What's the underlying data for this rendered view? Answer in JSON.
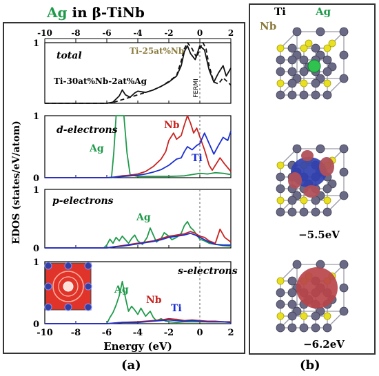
{
  "figure": {
    "title_element": "Ag",
    "title_rest": " in β-TiNb",
    "panel_a_label": "(a)",
    "panel_b_label": "(b)",
    "y_axis_label": "EDOS (states/eV/atom)",
    "x_axis_label": "Energy (eV)",
    "fermi_label": "FERMI",
    "colors": {
      "Ag": "#1f9a4a",
      "Nb": "#c8231f",
      "Ti": "#1a2fd0",
      "Ti25Nb": "#8a7a3a",
      "alloy": "#111111"
    }
  },
  "panels_b": {
    "legend": {
      "Ti": "Ti",
      "Ag": "Ag",
      "Nb": "Nb"
    },
    "energy_1": "−5.5eV",
    "energy_2": "−6.2eV"
  },
  "chart_data": [
    {
      "type": "line",
      "name": "total",
      "xlim": [
        -10,
        2
      ],
      "ylim": [
        0,
        1
      ],
      "x_ticks_top": [
        -10,
        -8,
        -6,
        -4,
        -2,
        0,
        2
      ],
      "y_ticks": [
        1
      ],
      "annotations": [
        "total",
        "Ti-25at%Nb",
        "Ti-30at%Nb-2at%Ag"
      ],
      "series": [
        {
          "name": "Ti-30at%Nb-2at%Ag",
          "style": "solid",
          "color": "#111111",
          "x": [
            -10,
            -6,
            -5.6,
            -5.2,
            -5.0,
            -4.8,
            -4.5,
            -4.2,
            -4.0,
            -3.5,
            -3.0,
            -2.5,
            -2.0,
            -1.5,
            -1.2,
            -1.0,
            -0.8,
            -0.6,
            -0.3,
            0.0,
            0.3,
            0.6,
            0.9,
            1.2,
            1.5,
            1.7,
            2.0
          ],
          "y": [
            0,
            0,
            0.02,
            0.12,
            0.22,
            0.14,
            0.1,
            0.17,
            0.2,
            0.18,
            0.22,
            0.28,
            0.35,
            0.45,
            0.62,
            0.85,
            0.95,
            0.82,
            0.72,
            0.95,
            0.88,
            0.55,
            0.35,
            0.5,
            0.62,
            0.45,
            0.58
          ]
        },
        {
          "name": "Ti-25at%Nb",
          "style": "dashed",
          "color": "#111111",
          "x": [
            -10,
            -6,
            -5.5,
            -5.0,
            -4.5,
            -4.0,
            -3.5,
            -3.0,
            -2.5,
            -2.0,
            -1.5,
            -1.2,
            -1.0,
            -0.8,
            -0.5,
            -0.2,
            0.0,
            0.2,
            0.4,
            0.6,
            0.9,
            1.2,
            1.5,
            1.8,
            2.0
          ],
          "y": [
            0,
            0,
            0.02,
            0.06,
            0.1,
            0.14,
            0.18,
            0.22,
            0.28,
            0.36,
            0.46,
            0.7,
            0.9,
            1.0,
            0.9,
            0.75,
            0.9,
            1.0,
            0.9,
            0.62,
            0.35,
            0.32,
            0.42,
            0.35,
            0.3
          ]
        }
      ]
    },
    {
      "type": "line",
      "name": "d-electrons",
      "xlim": [
        -10,
        2
      ],
      "ylim": [
        0,
        1
      ],
      "y_ticks": [
        0,
        1
      ],
      "annotations": [
        "d-electrons",
        "Ag",
        "Nb",
        "Ti"
      ],
      "series": [
        {
          "name": "Ag",
          "color": "#1f9a4a",
          "x": [
            -10,
            -5.7,
            -5.55,
            -5.4,
            -5.2,
            -4.9,
            -4.7,
            -4.5,
            -4.0,
            -3.0,
            -2.0,
            -1.0,
            -0.5,
            0.0,
            0.5,
            1.0,
            1.5,
            2.0
          ],
          "y": [
            0,
            0,
            0.4,
            1.0,
            1.0,
            1.0,
            0.4,
            0.05,
            0.02,
            0.02,
            0.02,
            0.03,
            0.05,
            0.07,
            0.06,
            0.08,
            0.07,
            0.05
          ]
        },
        {
          "name": "Nb",
          "color": "#c8231f",
          "x": [
            -10,
            -6,
            -5.5,
            -5.0,
            -4.5,
            -4.0,
            -3.5,
            -3.0,
            -2.5,
            -2.2,
            -2.0,
            -1.7,
            -1.5,
            -1.2,
            -1.0,
            -0.8,
            -0.6,
            -0.4,
            -0.2,
            0.0,
            0.3,
            0.6,
            0.8,
            1.0,
            1.3,
            1.6,
            2.0
          ],
          "y": [
            0,
            0,
            0.01,
            0.03,
            0.04,
            0.06,
            0.1,
            0.18,
            0.3,
            0.42,
            0.6,
            0.72,
            0.62,
            0.68,
            0.85,
            1.0,
            0.88,
            0.72,
            0.8,
            0.66,
            0.45,
            0.2,
            0.12,
            0.2,
            0.32,
            0.22,
            0.1
          ]
        },
        {
          "name": "Ti",
          "color": "#1a2fd0",
          "x": [
            -10,
            -6,
            -5.5,
            -5.0,
            -4.5,
            -4.0,
            -3.5,
            -3.0,
            -2.5,
            -2.0,
            -1.7,
            -1.5,
            -1.2,
            -1.0,
            -0.8,
            -0.5,
            -0.2,
            0.0,
            0.3,
            0.6,
            0.9,
            1.2,
            1.5,
            1.8,
            2.0
          ],
          "y": [
            0,
            0,
            0.01,
            0.02,
            0.03,
            0.04,
            0.06,
            0.09,
            0.13,
            0.2,
            0.26,
            0.3,
            0.32,
            0.42,
            0.5,
            0.45,
            0.52,
            0.55,
            0.72,
            0.55,
            0.38,
            0.52,
            0.65,
            0.6,
            0.75
          ]
        }
      ]
    },
    {
      "type": "line",
      "name": "p-electrons",
      "xlim": [
        -10,
        2
      ],
      "ylim": [
        0,
        1
      ],
      "y_ticks": [
        0,
        1
      ],
      "annotations": [
        "p-electrons",
        "Ag"
      ],
      "series": [
        {
          "name": "Ag",
          "color": "#1f9a4a",
          "x": [
            -10,
            -6.2,
            -6.0,
            -5.8,
            -5.6,
            -5.4,
            -5.2,
            -5.0,
            -4.8,
            -4.6,
            -4.4,
            -4.2,
            -4.0,
            -3.7,
            -3.4,
            -3.2,
            -3.0,
            -2.8,
            -2.5,
            -2.3,
            -2.0,
            -1.8,
            -1.5,
            -1.2,
            -1.0,
            -0.8,
            -0.6,
            -0.4,
            -0.2,
            0.0,
            0.3,
            0.6,
            1.0,
            1.5,
            2.0
          ],
          "y": [
            0,
            0,
            0.05,
            0.15,
            0.08,
            0.18,
            0.12,
            0.2,
            0.14,
            0.08,
            0.16,
            0.22,
            0.12,
            0.06,
            0.18,
            0.34,
            0.22,
            0.1,
            0.16,
            0.26,
            0.2,
            0.14,
            0.18,
            0.25,
            0.38,
            0.45,
            0.35,
            0.3,
            0.22,
            0.15,
            0.12,
            0.08,
            0.06,
            0.04,
            0.03
          ]
        },
        {
          "name": "Nb",
          "color": "#c8231f",
          "x": [
            -10,
            -6,
            -5.5,
            -5.0,
            -4.5,
            -4.0,
            -3.5,
            -3.0,
            -2.5,
            -2.0,
            -1.5,
            -1.0,
            -0.6,
            -0.3,
            0.0,
            0.3,
            0.6,
            1.0,
            1.3,
            1.6,
            2.0
          ],
          "y": [
            0,
            0,
            0.02,
            0.04,
            0.06,
            0.08,
            0.1,
            0.12,
            0.16,
            0.2,
            0.22,
            0.24,
            0.28,
            0.25,
            0.2,
            0.18,
            0.12,
            0.08,
            0.32,
            0.18,
            0.1
          ]
        },
        {
          "name": "Ti",
          "color": "#1a2fd0",
          "x": [
            -10,
            -6,
            -5.5,
            -5.0,
            -4.5,
            -4.0,
            -3.5,
            -3.0,
            -2.5,
            -2.0,
            -1.5,
            -1.0,
            -0.6,
            -0.3,
            0.0,
            0.3,
            0.6,
            1.0,
            1.5,
            2.0
          ],
          "y": [
            0,
            0,
            0.02,
            0.03,
            0.05,
            0.07,
            0.09,
            0.11,
            0.14,
            0.18,
            0.2,
            0.22,
            0.25,
            0.22,
            0.18,
            0.14,
            0.1,
            0.06,
            0.05,
            0.05
          ]
        }
      ]
    },
    {
      "type": "line",
      "name": "s-electrons",
      "xlim": [
        -10,
        2
      ],
      "ylim": [
        0,
        1
      ],
      "x_ticks": [
        -10,
        -8,
        -6,
        -4,
        -2,
        0,
        2
      ],
      "y_ticks": [
        0,
        1
      ],
      "annotations": [
        "s-electrons",
        "Ag",
        "Nb",
        "Ti"
      ],
      "series": [
        {
          "name": "Ag",
          "color": "#1f9a4a",
          "x": [
            -10,
            -6.0,
            -5.8,
            -5.6,
            -5.4,
            -5.2,
            -5.0,
            -4.8,
            -4.6,
            -4.4,
            -4.2,
            -4.0,
            -3.8,
            -3.5,
            -3.2,
            -3.0,
            -2.8,
            -2.5,
            -2.2,
            -2.0,
            -1.5,
            -1.0,
            -0.5,
            0.0,
            0.5,
            1.0,
            1.5,
            2.0
          ],
          "y": [
            0,
            0,
            0.1,
            0.18,
            0.3,
            0.45,
            0.68,
            0.42,
            0.2,
            0.28,
            0.22,
            0.15,
            0.25,
            0.12,
            0.2,
            0.1,
            0.05,
            0.08,
            0.04,
            0.03,
            0.02,
            0.03,
            0.03,
            0.03,
            0.03,
            0.03,
            0.03,
            0.02
          ]
        },
        {
          "name": "Nb",
          "color": "#c8231f",
          "x": [
            -10,
            -6,
            -5.0,
            -4.0,
            -3.0,
            -2.5,
            -2.0,
            -1.5,
            -1.0,
            -0.5,
            0.0,
            0.5,
            1.0,
            1.5,
            2.0
          ],
          "y": [
            0,
            0,
            0.02,
            0.03,
            0.05,
            0.06,
            0.08,
            0.07,
            0.05,
            0.06,
            0.05,
            0.04,
            0.04,
            0.03,
            0.03
          ]
        },
        {
          "name": "Ti",
          "color": "#1a2fd0",
          "x": [
            -10,
            -6,
            -5.0,
            -4.0,
            -3.0,
            -2.5,
            -2.0,
            -1.5,
            -1.0,
            -0.5,
            0.0,
            0.5,
            1.0,
            1.5,
            2.0
          ],
          "y": [
            0,
            0,
            0.02,
            0.02,
            0.04,
            0.05,
            0.06,
            0.05,
            0.04,
            0.05,
            0.04,
            0.03,
            0.03,
            0.03,
            0.02
          ]
        }
      ]
    }
  ]
}
